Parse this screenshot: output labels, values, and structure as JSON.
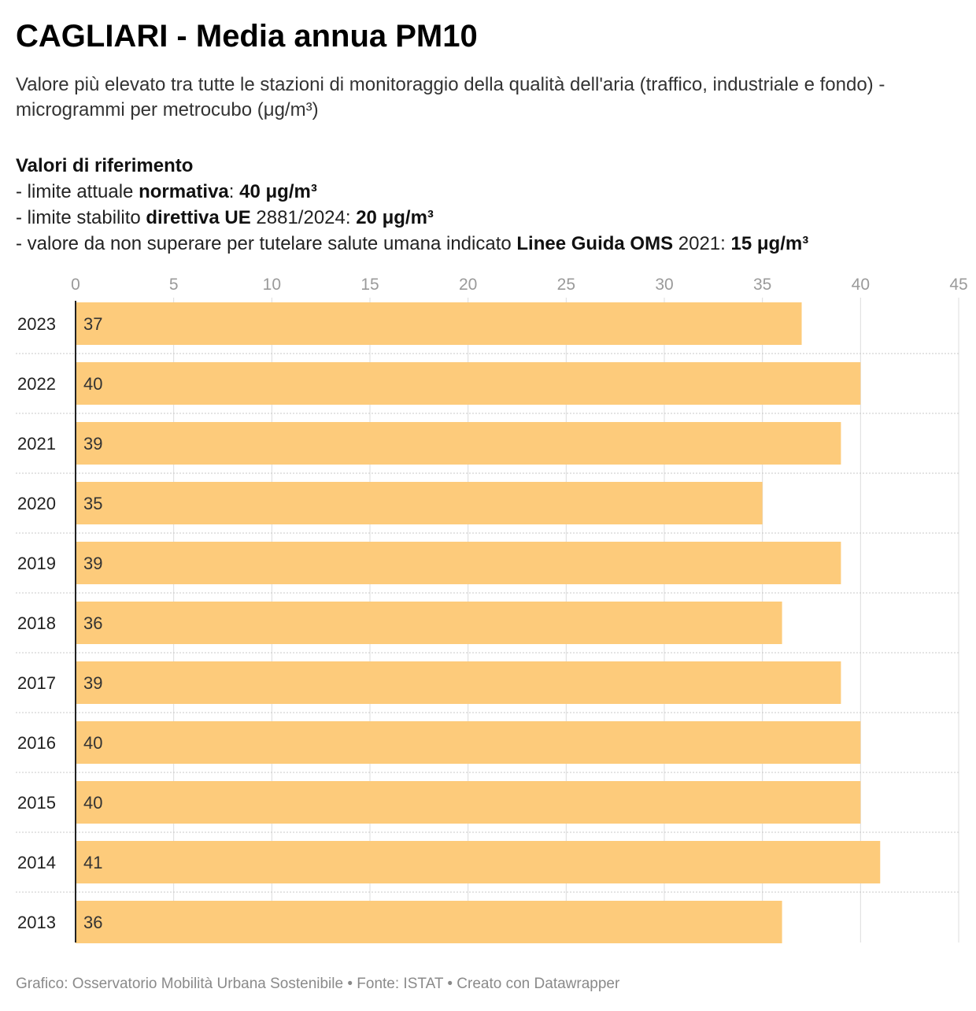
{
  "header": {
    "title": "CAGLIARI - Media annua PM10",
    "subtitle": "Valore più elevato tra tutte le stazioni di monitoraggio della qualità dell'aria (traffico, industriale e fondo) - microgrammi per metrocubo (μg/m³)"
  },
  "reference": {
    "heading": "Valori di riferimento",
    "line1": {
      "a": "- limite attuale ",
      "b": "normativa",
      "c": ": ",
      "d": "40 μg/m³"
    },
    "line2": {
      "a": "- limite stabilito ",
      "b": "direttiva UE",
      "c": " 2881/2024: ",
      "d": "20 μg/m³"
    },
    "line3": {
      "a": "- valore da non superare per tutelare salute umana indicato ",
      "b": "Linee Guida OMS",
      "c": " 2021: ",
      "d": "15 μg/m³"
    }
  },
  "footer": {
    "text": "Grafico: Osservatorio Mobilità Urbana Sostenibile • Fonte: ISTAT • Creato con Datawrapper"
  },
  "colors": {
    "bar": "#fdcb7b",
    "grid": "#dcdcdc",
    "axis": "#222222"
  },
  "chart_data": {
    "type": "bar",
    "orientation": "horizontal",
    "title": "CAGLIARI - Media annua PM10",
    "categories": [
      "2023",
      "2022",
      "2021",
      "2020",
      "2019",
      "2018",
      "2017",
      "2016",
      "2015",
      "2014",
      "2013"
    ],
    "values": [
      37,
      40,
      39,
      35,
      39,
      36,
      39,
      40,
      40,
      41,
      36
    ],
    "xlim": [
      0,
      45
    ],
    "xticks": [
      0,
      5,
      10,
      15,
      20,
      25,
      30,
      35,
      40,
      45
    ],
    "x_axis_position": "top",
    "grid": true,
    "data_labels": true
  }
}
